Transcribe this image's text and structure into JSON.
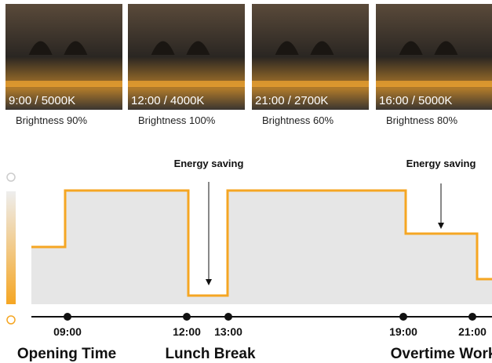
{
  "photos": [
    {
      "caption": "9:00 / 5000K",
      "brightness": "Brightness 90%"
    },
    {
      "caption": "12:00 / 4000K",
      "brightness": "Brightness 100%"
    },
    {
      "caption": "21:00 / 2700K",
      "brightness": "Brightness 60%"
    },
    {
      "caption": "16:00 / 5000K",
      "brightness": "Brightness 80%"
    }
  ],
  "annotations": [
    "Energy saving",
    "Energy saving"
  ],
  "timeline": {
    "times": [
      "09:00",
      "12:00",
      "13:00",
      "19:00",
      "21:00"
    ],
    "phases": [
      "Opening Time",
      "Lunch Break",
      "Overtime Work"
    ]
  }
}
